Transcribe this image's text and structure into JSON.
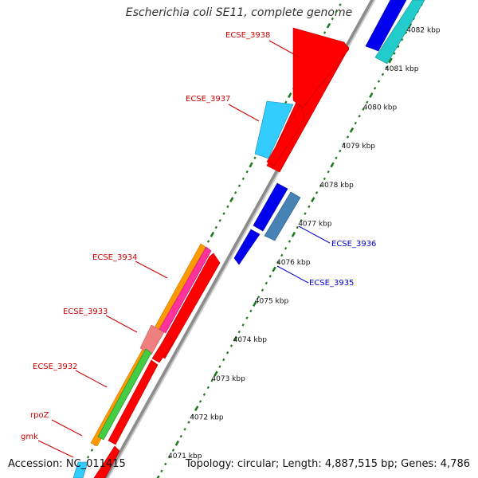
{
  "title": "Escherichia coli SE11, complete genome",
  "footer": {
    "accession": "Accession: NC_011415",
    "summary": "Topology: circular; Length: 4,887,515 bp; Genes: 4,786"
  },
  "colors": {
    "label_red": "#cc0000",
    "label_blue": "#0000cc",
    "backbone": "#8c8c8c",
    "tick_green": "#1f7a1f"
  },
  "ticks": [
    "4071 kbp",
    "4072 kbp",
    "4073 kbp",
    "4074 kbp",
    "4075 kbp",
    "4076 kbp",
    "4077 kbp",
    "4078 kbp",
    "4079 kbp",
    "4080 kbp",
    "4081 kbp",
    "4082 kbp"
  ],
  "labels": {
    "gmk": "gmk",
    "rpoZ": "rpoZ",
    "ecse3932": "ECSE_3932",
    "ecse3933": "ECSE_3933",
    "ecse3934": "ECSE_3934",
    "ecse3935": "ECSE_3935",
    "ecse3936": "ECSE_3936",
    "ecse3937": "ECSE_3937",
    "ecse3938": "ECSE_3938"
  }
}
